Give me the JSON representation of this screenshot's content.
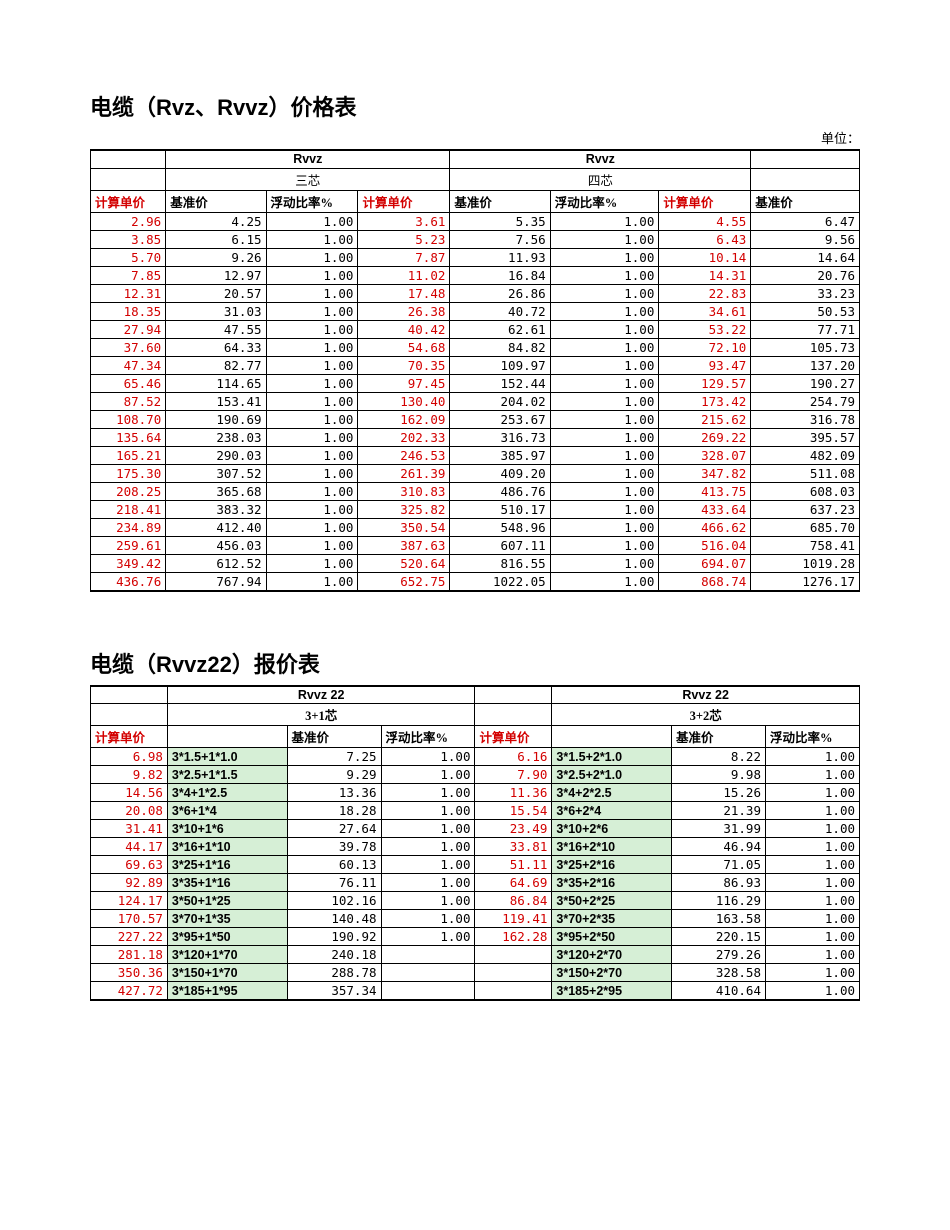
{
  "table1": {
    "title": "电缆（Rvz、Rvvz）价格表",
    "unit": "单位：",
    "group_labels": [
      "Rvvz",
      "Rvvz"
    ],
    "sub_labels": [
      "三芯",
      "四芯"
    ],
    "col_labels": {
      "jisuan": "计算单价",
      "jizhun": "基准价",
      "fudong": "浮动比率%"
    },
    "rows": [
      [
        "2.96",
        "4.25",
        "1.00",
        "3.61",
        "5.35",
        "1.00",
        "4.55",
        "6.47"
      ],
      [
        "3.85",
        "6.15",
        "1.00",
        "5.23",
        "7.56",
        "1.00",
        "6.43",
        "9.56"
      ],
      [
        "5.70",
        "9.26",
        "1.00",
        "7.87",
        "11.93",
        "1.00",
        "10.14",
        "14.64"
      ],
      [
        "7.85",
        "12.97",
        "1.00",
        "11.02",
        "16.84",
        "1.00",
        "14.31",
        "20.76"
      ],
      [
        "12.31",
        "20.57",
        "1.00",
        "17.48",
        "26.86",
        "1.00",
        "22.83",
        "33.23"
      ],
      [
        "18.35",
        "31.03",
        "1.00",
        "26.38",
        "40.72",
        "1.00",
        "34.61",
        "50.53"
      ],
      [
        "27.94",
        "47.55",
        "1.00",
        "40.42",
        "62.61",
        "1.00",
        "53.22",
        "77.71"
      ],
      [
        "37.60",
        "64.33",
        "1.00",
        "54.68",
        "84.82",
        "1.00",
        "72.10",
        "105.73"
      ],
      [
        "47.34",
        "82.77",
        "1.00",
        "70.35",
        "109.97",
        "1.00",
        "93.47",
        "137.20"
      ],
      [
        "65.46",
        "114.65",
        "1.00",
        "97.45",
        "152.44",
        "1.00",
        "129.57",
        "190.27"
      ],
      [
        "87.52",
        "153.41",
        "1.00",
        "130.40",
        "204.02",
        "1.00",
        "173.42",
        "254.79"
      ],
      [
        "108.70",
        "190.69",
        "1.00",
        "162.09",
        "253.67",
        "1.00",
        "215.62",
        "316.78"
      ],
      [
        "135.64",
        "238.03",
        "1.00",
        "202.33",
        "316.73",
        "1.00",
        "269.22",
        "395.57"
      ],
      [
        "165.21",
        "290.03",
        "1.00",
        "246.53",
        "385.97",
        "1.00",
        "328.07",
        "482.09"
      ],
      [
        "175.30",
        "307.52",
        "1.00",
        "261.39",
        "409.20",
        "1.00",
        "347.82",
        "511.08"
      ],
      [
        "208.25",
        "365.68",
        "1.00",
        "310.83",
        "486.76",
        "1.00",
        "413.75",
        "608.03"
      ],
      [
        "218.41",
        "383.32",
        "1.00",
        "325.82",
        "510.17",
        "1.00",
        "433.64",
        "637.23"
      ],
      [
        "234.89",
        "412.40",
        "1.00",
        "350.54",
        "548.96",
        "1.00",
        "466.62",
        "685.70"
      ],
      [
        "259.61",
        "456.03",
        "1.00",
        "387.63",
        "607.11",
        "1.00",
        "516.04",
        "758.41"
      ],
      [
        "349.42",
        "612.52",
        "1.00",
        "520.64",
        "816.55",
        "1.00",
        "694.07",
        "1019.28"
      ],
      [
        "436.76",
        "767.94",
        "1.00",
        "652.75",
        "1022.05",
        "1.00",
        "868.74",
        "1276.17"
      ]
    ]
  },
  "table2": {
    "title": "电缆（Rvvz22）报价表",
    "group_labels": [
      "Rvvz 22",
      "Rvvz 22"
    ],
    "sub_labels": [
      "3+1芯",
      "3+2芯"
    ],
    "col_labels": {
      "jisuan": "计算单价",
      "jizhun": "基准价",
      "fudong": "浮动比率%",
      "spec": ""
    },
    "rows": [
      [
        "6.98",
        "3*1.5+1*1.0",
        "7.25",
        "1.00",
        "6.16",
        "3*1.5+2*1.0",
        "8.22",
        "1.00"
      ],
      [
        "9.82",
        "3*2.5+1*1.5",
        "9.29",
        "1.00",
        "7.90",
        "3*2.5+2*1.0",
        "9.98",
        "1.00"
      ],
      [
        "14.56",
        "3*4+1*2.5",
        "13.36",
        "1.00",
        "11.36",
        "3*4+2*2.5",
        "15.26",
        "1.00"
      ],
      [
        "20.08",
        "3*6+1*4",
        "18.28",
        "1.00",
        "15.54",
        "3*6+2*4",
        "21.39",
        "1.00"
      ],
      [
        "31.41",
        "3*10+1*6",
        "27.64",
        "1.00",
        "23.49",
        "3*10+2*6",
        "31.99",
        "1.00"
      ],
      [
        "44.17",
        "3*16+1*10",
        "39.78",
        "1.00",
        "33.81",
        "3*16+2*10",
        "46.94",
        "1.00"
      ],
      [
        "69.63",
        "3*25+1*16",
        "60.13",
        "1.00",
        "51.11",
        "3*25+2*16",
        "71.05",
        "1.00"
      ],
      [
        "92.89",
        "3*35+1*16",
        "76.11",
        "1.00",
        "64.69",
        "3*35+2*16",
        "86.93",
        "1.00"
      ],
      [
        "124.17",
        "3*50+1*25",
        "102.16",
        "1.00",
        "86.84",
        "3*50+2*25",
        "116.29",
        "1.00"
      ],
      [
        "170.57",
        "3*70+1*35",
        "140.48",
        "1.00",
        "119.41",
        "3*70+2*35",
        "163.58",
        "1.00"
      ],
      [
        "227.22",
        "3*95+1*50",
        "190.92",
        "1.00",
        "162.28",
        "3*95+2*50",
        "220.15",
        "1.00"
      ],
      [
        "281.18",
        "3*120+1*70",
        "240.18",
        "",
        "",
        "3*120+2*70",
        "279.26",
        "1.00"
      ],
      [
        "350.36",
        "3*150+1*70",
        "288.78",
        "",
        "",
        "3*150+2*70",
        "328.58",
        "1.00"
      ],
      [
        "427.72",
        "3*185+1*95",
        "357.34",
        "",
        "",
        "3*185+2*95",
        "410.64",
        "1.00"
      ]
    ]
  }
}
